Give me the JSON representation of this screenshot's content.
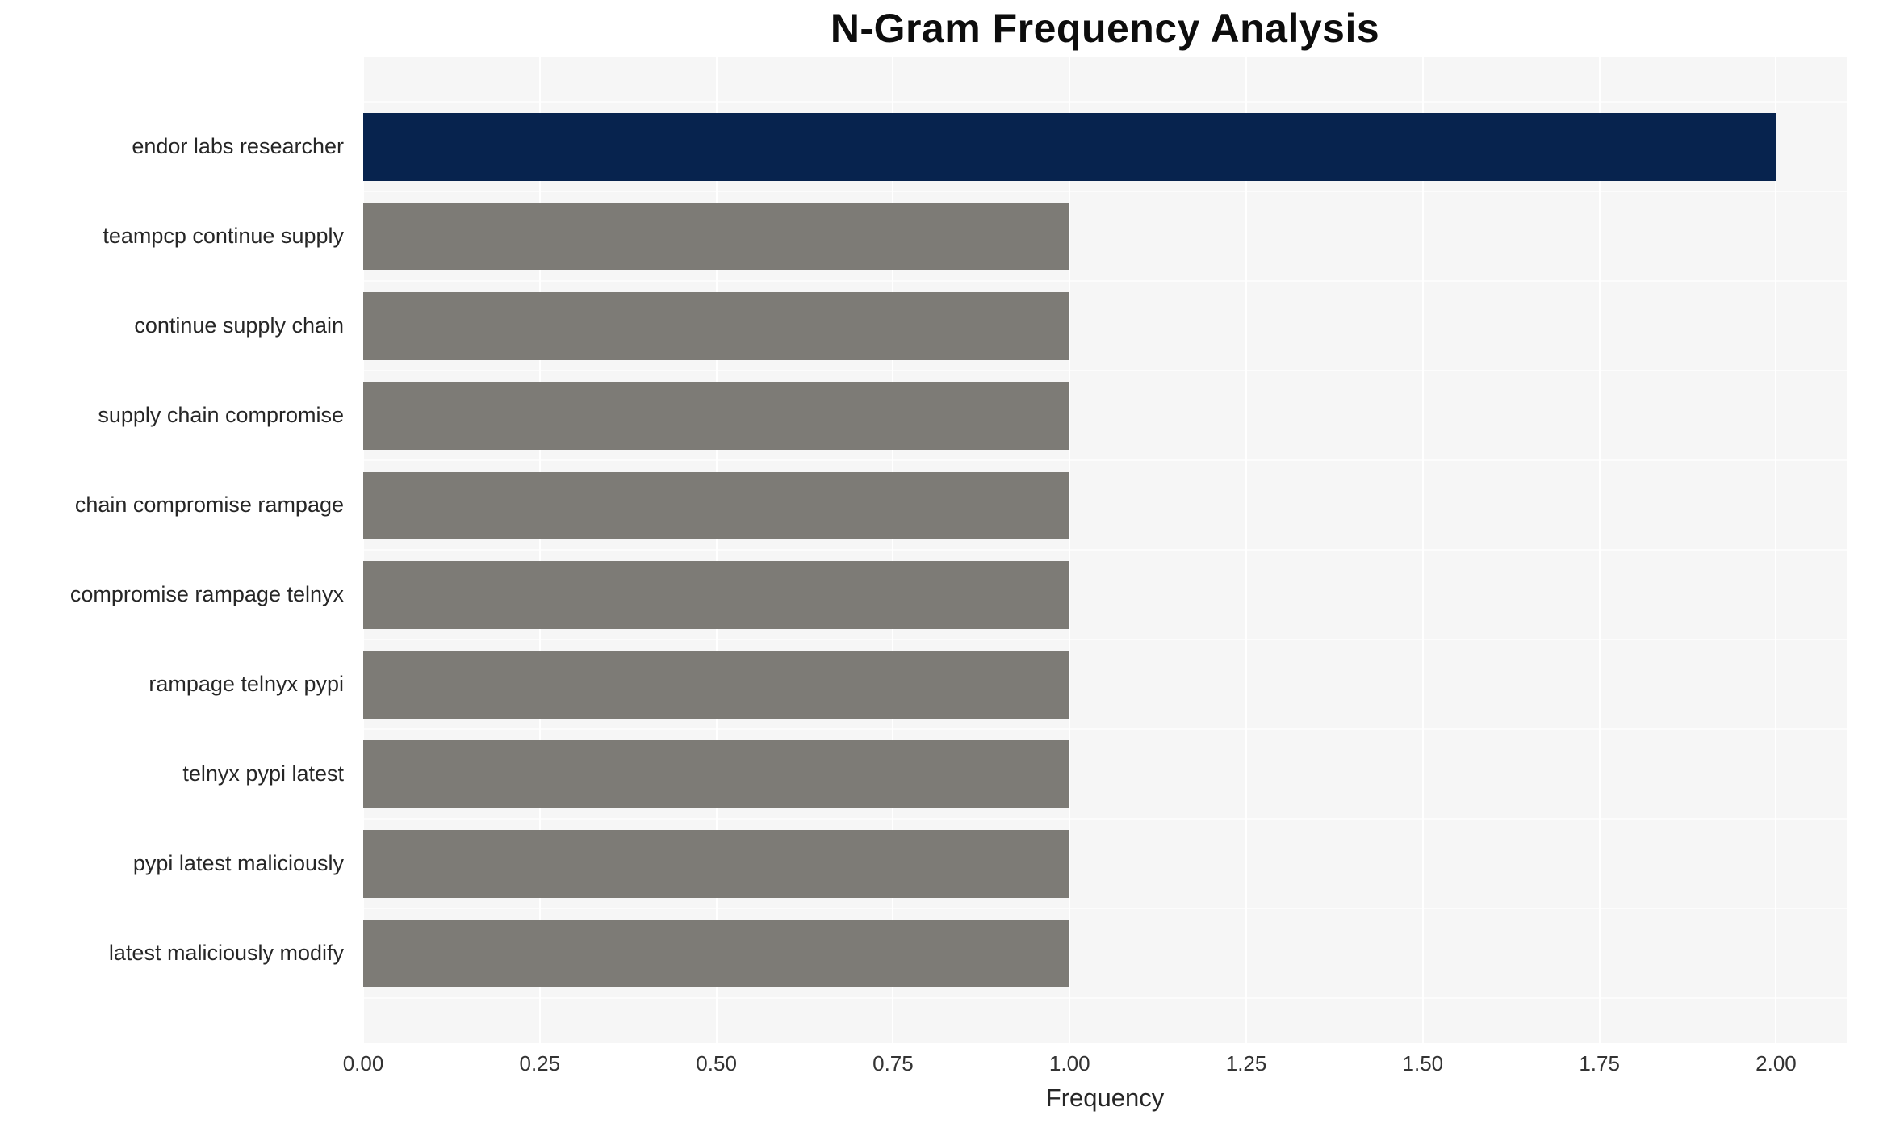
{
  "title": "N-Gram Frequency Analysis",
  "chart_data": {
    "type": "bar",
    "orientation": "horizontal",
    "title": "N-Gram Frequency Analysis",
    "xlabel": "Frequency",
    "ylabel": "",
    "categories": [
      "endor labs researcher",
      "teampcp continue supply",
      "continue supply chain",
      "supply chain compromise",
      "chain compromise rampage",
      "compromise rampage telnyx",
      "rampage telnyx pypi",
      "telnyx pypi latest",
      "pypi latest maliciously",
      "latest maliciously modify"
    ],
    "values": [
      2,
      1,
      1,
      1,
      1,
      1,
      1,
      1,
      1,
      1
    ],
    "bar_colors": [
      "#07234e",
      "#7d7b76",
      "#7d7b76",
      "#7d7b76",
      "#7d7b76",
      "#7d7b76",
      "#7d7b76",
      "#7d7b76",
      "#7d7b76",
      "#7d7b76"
    ],
    "xlim": [
      0,
      2.1
    ],
    "xticks": [
      0,
      0.25,
      0.5,
      0.75,
      1.0,
      1.25,
      1.5,
      1.75,
      2.0
    ],
    "xtick_labels": [
      "0.00",
      "0.25",
      "0.50",
      "0.75",
      "1.00",
      "1.25",
      "1.50",
      "1.75",
      "2.00"
    ],
    "grid": "white vertical gridlines on light gray panel",
    "legend": false,
    "colors": {
      "bar_highlight": "#07234e",
      "bar_default": "#7d7b76",
      "plot_background": "#f6f6f6",
      "gridline": "#ffffff",
      "text": "#262626"
    }
  }
}
